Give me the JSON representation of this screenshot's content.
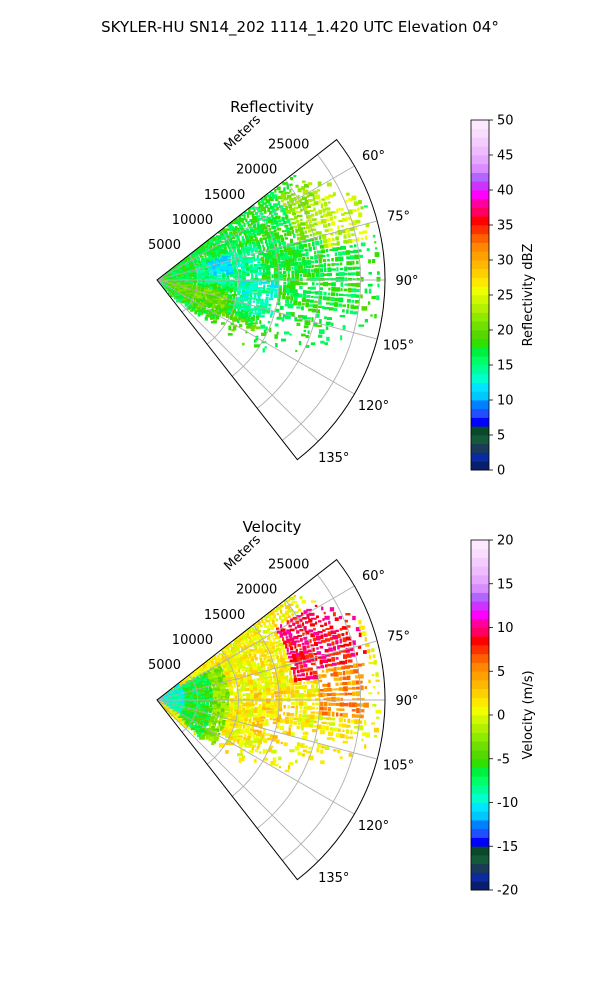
{
  "figure": {
    "title": "SKYLER-HU  SN14_202  1114_1.420 UTC Elevation 04°"
  },
  "chart_data": [
    {
      "type": "heatmap",
      "subtype": "polar-sector",
      "title": "Reflectivity",
      "range_label": "Meters",
      "range_ticks": [
        "5000",
        "10000",
        "15000",
        "20000",
        "25000"
      ],
      "range_tick_values": [
        5000,
        10000,
        15000,
        20000,
        25000
      ],
      "r_max": 28000,
      "azimuth_ticks": [
        "60°",
        "75°",
        "90°",
        "105°",
        "120°",
        "135°"
      ],
      "azimuth_tick_values": [
        60,
        75,
        90,
        105,
        120,
        135
      ],
      "azimuth_range": [
        52,
        142
      ],
      "grid": true,
      "colorbar": {
        "label": "Reflectivity dBZ",
        "min": 0,
        "max": 50,
        "ticks": [
          "0",
          "5",
          "10",
          "15",
          "20",
          "25",
          "30",
          "35",
          "40",
          "45",
          "50"
        ],
        "tick_values": [
          0,
          5,
          10,
          15,
          20,
          25,
          30,
          35,
          40,
          45,
          50
        ],
        "colors": [
          "#0a1e6e",
          "#0a2aa0",
          "#1a3a5a",
          "#145a3a",
          "#0a4a2a",
          "#0000ff",
          "#1f4fff",
          "#0080ff",
          "#00c8ff",
          "#00e5ff",
          "#00ffcc",
          "#00ff99",
          "#00ff66",
          "#00f040",
          "#30e000",
          "#55d800",
          "#70e000",
          "#90ea00",
          "#b0f000",
          "#d0f800",
          "#f0ff00",
          "#ffe800",
          "#ffd000",
          "#ffb800",
          "#ffa000",
          "#ff8800",
          "#ff6000",
          "#ff3000",
          "#ff0000",
          "#ff0060",
          "#ff00a0",
          "#ff00ff",
          "#cc33ff",
          "#b266ff",
          "#d98cff",
          "#e6a8ff",
          "#eebbff",
          "#f4ccff",
          "#f8ddff",
          "#fce8ff"
        ]
      },
      "field": {
        "dominant_value": 17,
        "cells": [
          {
            "az": [
              55,
              75
            ],
            "r": [
              18000,
              26000
            ],
            "value": 22
          },
          {
            "az": [
              62,
              80
            ],
            "r": [
              21000,
              27000
            ],
            "value": 24
          },
          {
            "az": [
              70,
              95
            ],
            "r": [
              5000,
              13000
            ],
            "value": 15
          },
          {
            "az": [
              72,
              85
            ],
            "r": [
              6500,
              9500
            ],
            "value": 12
          },
          {
            "az": [
              90,
              110
            ],
            "r": [
              10000,
              15000
            ],
            "value": 14
          },
          {
            "az": [
              100,
              120
            ],
            "r": [
              0,
              9000
            ],
            "value": 20
          },
          {
            "az": [
              115,
              128
            ],
            "r": [
              4000,
              14000
            ],
            "value": 19
          }
        ]
      }
    },
    {
      "type": "heatmap",
      "subtype": "polar-sector",
      "title": "Velocity",
      "range_label": "Meters",
      "range_ticks": [
        "5000",
        "10000",
        "15000",
        "20000",
        "25000"
      ],
      "range_tick_values": [
        5000,
        10000,
        15000,
        20000,
        25000
      ],
      "r_max": 28000,
      "azimuth_ticks": [
        "60°",
        "75°",
        "90°",
        "105°",
        "120°",
        "135°"
      ],
      "azimuth_tick_values": [
        60,
        75,
        90,
        105,
        120,
        135
      ],
      "azimuth_range": [
        52,
        142
      ],
      "grid": true,
      "colorbar": {
        "label": "Velocity (m/s)",
        "min": -20,
        "max": 20,
        "ticks": [
          "-20",
          "-15",
          "-10",
          "-5",
          "0",
          "5",
          "10",
          "15",
          "20"
        ],
        "tick_values": [
          -20,
          -15,
          -10,
          -5,
          0,
          5,
          10,
          15,
          20
        ],
        "colors": [
          "#0a1e6e",
          "#0a2aa0",
          "#1a3a5a",
          "#145a3a",
          "#0a4a2a",
          "#0000ff",
          "#1f4fff",
          "#0080ff",
          "#00c8ff",
          "#00e5ff",
          "#00ffcc",
          "#00ff99",
          "#00ff66",
          "#00f040",
          "#30e000",
          "#55d800",
          "#70e000",
          "#90ea00",
          "#b0f000",
          "#d0f800",
          "#f0ff00",
          "#ffe800",
          "#ffd000",
          "#ffb800",
          "#ffa000",
          "#ff8800",
          "#ff6000",
          "#ff3000",
          "#ff0000",
          "#ff0060",
          "#ff00a0",
          "#ff00ff",
          "#cc33ff",
          "#b266ff",
          "#d98cff",
          "#e6a8ff",
          "#eebbff",
          "#f4ccff",
          "#f8ddff",
          "#fce8ff"
        ]
      },
      "field": {
        "dominant_value": 1,
        "cells": [
          {
            "az": [
              55,
              125
            ],
            "r": [
              0,
              3500
            ],
            "value": -9
          },
          {
            "az": [
              60,
              130
            ],
            "r": [
              3500,
              7000
            ],
            "value": -6
          },
          {
            "az": [
              60,
              130
            ],
            "r": [
              7000,
              9000
            ],
            "value": -3
          },
          {
            "az": [
              58,
              82
            ],
            "r": [
              17000,
              26500
            ],
            "value": 9
          },
          {
            "az": [
              80,
              95
            ],
            "r": [
              20000,
              26000
            ],
            "value": 5
          },
          {
            "az": [
              85,
              110
            ],
            "r": [
              12000,
              17000
            ],
            "value": 2
          }
        ]
      }
    }
  ]
}
